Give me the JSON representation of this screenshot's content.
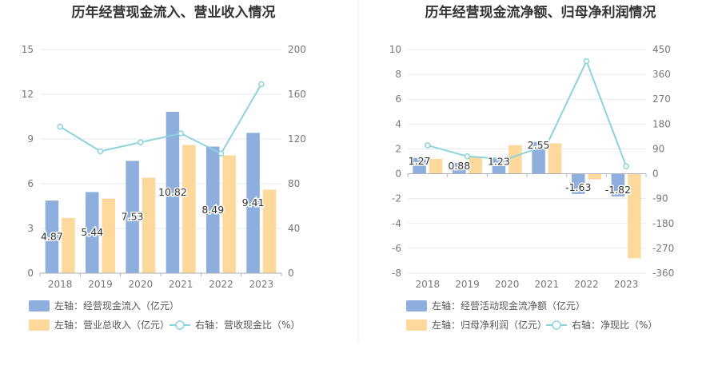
{
  "chart_data": [
    {
      "type": "bar",
      "title": "历年经营现金流入、营业收入情况",
      "categories": [
        "2018",
        "2019",
        "2020",
        "2021",
        "2022",
        "2023"
      ],
      "ylim_left": [
        0,
        15
      ],
      "yticks_left": [
        "0",
        "3",
        "6",
        "9",
        "12",
        "15"
      ],
      "ylim_right": [
        0,
        200
      ],
      "yticks_right": [
        "0",
        "40",
        "80",
        "120",
        "160",
        "200"
      ],
      "series": [
        {
          "name": "左轴：经营现金流入（亿元）",
          "axis": "left",
          "kind": "bar",
          "color": "#8eaedd",
          "values": [
            4.87,
            5.44,
            7.53,
            10.82,
            8.49,
            9.41
          ],
          "labels": [
            "4.87",
            "5.44",
            "7.53",
            "10.82",
            "8.49",
            "9.41"
          ]
        },
        {
          "name": "左轴：营业总收入（亿元）",
          "axis": "left",
          "kind": "bar",
          "color": "#fed99b",
          "values": [
            3.7,
            5.0,
            6.4,
            8.6,
            7.9,
            5.6
          ]
        },
        {
          "name": "右轴：营收现金比（%）",
          "axis": "right",
          "kind": "line",
          "color": "#8dd3dc",
          "values": [
            131,
            109,
            117,
            125,
            107,
            169
          ]
        }
      ],
      "grid": true
    },
    {
      "type": "bar",
      "title": "历年经营现金流净额、归母净利润情况",
      "categories": [
        "2018",
        "2019",
        "2020",
        "2021",
        "2022",
        "2023"
      ],
      "ylim_left": [
        -8,
        10
      ],
      "yticks_left": [
        "-8",
        "-6",
        "-4",
        "-2",
        "0",
        "2",
        "4",
        "6",
        "8",
        "10"
      ],
      "ylim_right": [
        -360,
        450
      ],
      "yticks_right": [
        "-360",
        "-270",
        "-180",
        "-90",
        "0",
        "90",
        "180",
        "270",
        "360",
        "450"
      ],
      "series": [
        {
          "name": "左轴：经营活动现金流净额（亿元）",
          "axis": "left",
          "kind": "bar",
          "color": "#8eaedd",
          "values": [
            1.27,
            0.88,
            1.23,
            2.55,
            -1.63,
            -1.82
          ],
          "labels": [
            "1.27",
            "0.88",
            "1.23",
            "2.55",
            "-1.63",
            "-1.82"
          ]
        },
        {
          "name": "左轴：归母净利润（亿元）",
          "axis": "left",
          "kind": "bar",
          "color": "#fed99b",
          "values": [
            1.2,
            1.35,
            2.3,
            2.45,
            -0.45,
            -6.8
          ]
        },
        {
          "name": "右轴：净现比（%）",
          "axis": "right",
          "kind": "line",
          "color": "#8dd3dc",
          "values": [
            103,
            63,
            53,
            104,
            408,
            27
          ]
        }
      ],
      "grid": true
    }
  ]
}
